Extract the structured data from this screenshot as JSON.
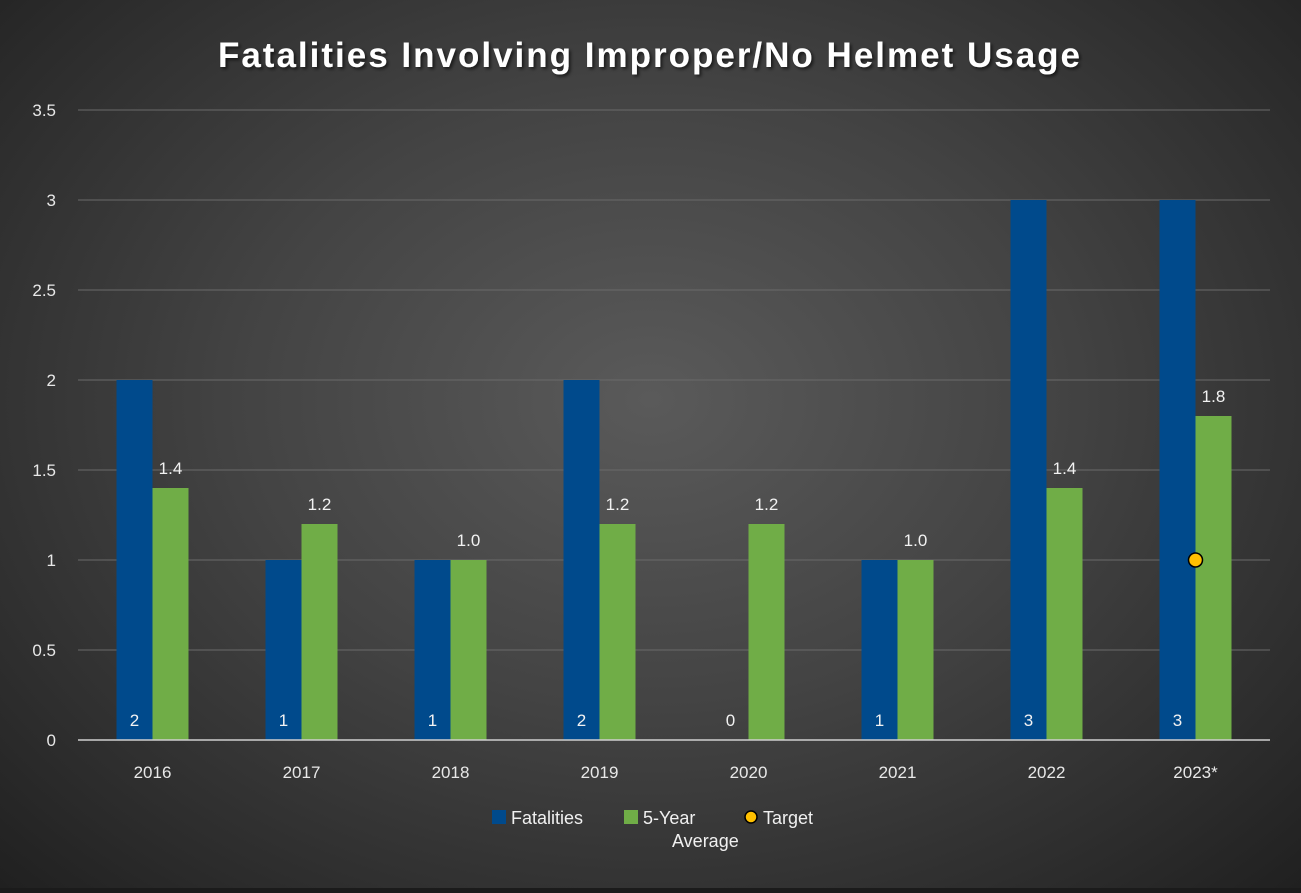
{
  "chart_data": {
    "type": "bar",
    "title": "Fatalities Involving Improper/No Helmet Usage",
    "xlabel": "",
    "ylabel": "",
    "categories": [
      "2016",
      "2017",
      "2018",
      "2019",
      "2020",
      "2021",
      "2022",
      "2023*"
    ],
    "series": [
      {
        "name": "Fatalities",
        "type": "bar",
        "color": "#004a8c",
        "values": [
          2,
          1,
          1,
          2,
          0,
          1,
          3,
          3
        ],
        "labels": [
          "2",
          "1",
          "1",
          "2",
          "0",
          "1",
          "3",
          "3"
        ],
        "label_position": "inside-base"
      },
      {
        "name": "5-Year Average",
        "type": "bar",
        "color": "#70ad47",
        "values": [
          1.4,
          1.2,
          1.0,
          1.2,
          1.2,
          1.0,
          1.4,
          1.8
        ],
        "labels": [
          "1.4",
          "1.2",
          "1.0",
          "1.2",
          "1.2",
          "1.0",
          "1.4",
          "1.8"
        ],
        "label_position": "outside-end"
      },
      {
        "name": "Target",
        "type": "marker",
        "color": "#ffc000",
        "points": [
          {
            "category": "2023*",
            "value": 1
          }
        ]
      }
    ],
    "yticks": [
      "0",
      "0.5",
      "1",
      "1.5",
      "2",
      "2.5",
      "3",
      "3.5"
    ],
    "ylim": [
      0,
      3.5
    ],
    "grid": true,
    "legend": {
      "position": "bottom",
      "items": [
        {
          "label_lines": [
            "Fatalities"
          ],
          "symbol": "square",
          "color": "#004a8c"
        },
        {
          "label_lines": [
            "5-Year",
            "Average"
          ],
          "symbol": "square",
          "color": "#70ad47"
        },
        {
          "label_lines": [
            "Target"
          ],
          "symbol": "circle",
          "color": "#ffc000"
        }
      ]
    }
  }
}
